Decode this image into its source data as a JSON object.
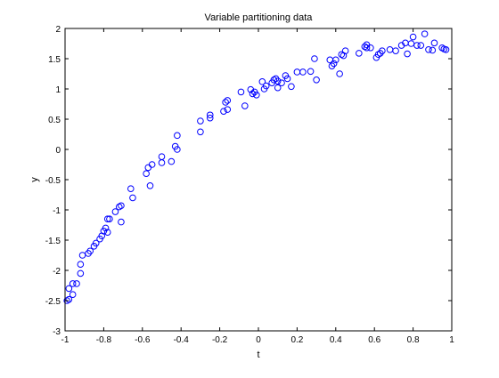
{
  "chart_data": {
    "type": "scatter",
    "title": "Variable partitioning data",
    "xlabel": "t",
    "ylabel": "y",
    "xlim": [
      -1,
      1
    ],
    "ylim": [
      -3,
      2
    ],
    "xticks": [
      -1,
      -0.8,
      -0.6,
      -0.4,
      -0.2,
      0,
      0.2,
      0.4,
      0.6,
      0.8,
      1
    ],
    "xtick_labels": [
      "-1",
      "-0.8",
      "-0.6",
      "-0.4",
      "-0.2",
      "0",
      "0.2",
      "0.4",
      "0.6",
      "0.8",
      "1"
    ],
    "yticks": [
      -3,
      -2.5,
      -2,
      -1.5,
      -1,
      -0.5,
      0,
      0.5,
      1,
      1.5,
      2
    ],
    "ytick_labels": [
      "-3",
      "-2.5",
      "-2",
      "-1.5",
      "-1",
      "-0.5",
      "0",
      "0.5",
      "1",
      "1.5",
      "2"
    ],
    "grid": false,
    "marker": "circle",
    "marker_color": "#0000ff",
    "series": [
      {
        "points": [
          [
            -0.99,
            -2.5
          ],
          [
            -0.98,
            -2.48
          ],
          [
            -0.98,
            -2.3
          ],
          [
            -0.96,
            -2.22
          ],
          [
            -0.96,
            -2.4
          ],
          [
            -0.94,
            -2.22
          ],
          [
            -0.92,
            -2.05
          ],
          [
            -0.92,
            -1.9
          ],
          [
            -0.91,
            -1.75
          ],
          [
            -0.88,
            -1.72
          ],
          [
            -0.87,
            -1.68
          ],
          [
            -0.85,
            -1.6
          ],
          [
            -0.84,
            -1.55
          ],
          [
            -0.82,
            -1.48
          ],
          [
            -0.81,
            -1.43
          ],
          [
            -0.8,
            -1.35
          ],
          [
            -0.79,
            -1.3
          ],
          [
            -0.78,
            -1.37
          ],
          [
            -0.78,
            -1.15
          ],
          [
            -0.77,
            -1.15
          ],
          [
            -0.74,
            -1.03
          ],
          [
            -0.72,
            -0.95
          ],
          [
            -0.71,
            -0.93
          ],
          [
            -0.71,
            -1.2
          ],
          [
            -0.66,
            -0.65
          ],
          [
            -0.65,
            -0.8
          ],
          [
            -0.58,
            -0.4
          ],
          [
            -0.57,
            -0.3
          ],
          [
            -0.56,
            -0.6
          ],
          [
            -0.55,
            -0.25
          ],
          [
            -0.5,
            -0.12
          ],
          [
            -0.5,
            -0.22
          ],
          [
            -0.45,
            -0.2
          ],
          [
            -0.43,
            0.05
          ],
          [
            -0.42,
            0.0
          ],
          [
            -0.42,
            0.23
          ],
          [
            -0.3,
            0.29
          ],
          [
            -0.3,
            0.47
          ],
          [
            -0.25,
            0.52
          ],
          [
            -0.25,
            0.57
          ],
          [
            -0.18,
            0.63
          ],
          [
            -0.17,
            0.78
          ],
          [
            -0.16,
            0.81
          ],
          [
            -0.16,
            0.66
          ],
          [
            -0.09,
            0.95
          ],
          [
            -0.07,
            0.72
          ],
          [
            -0.04,
            0.99
          ],
          [
            -0.03,
            0.92
          ],
          [
            -0.02,
            0.95
          ],
          [
            -0.01,
            0.9
          ],
          [
            0.02,
            1.12
          ],
          [
            0.03,
            1.0
          ],
          [
            0.04,
            1.05
          ],
          [
            0.07,
            1.1
          ],
          [
            0.08,
            1.15
          ],
          [
            0.09,
            1.17
          ],
          [
            0.1,
            1.13
          ],
          [
            0.1,
            1.02
          ],
          [
            0.12,
            1.1
          ],
          [
            0.14,
            1.22
          ],
          [
            0.15,
            1.17
          ],
          [
            0.17,
            1.04
          ],
          [
            0.2,
            1.28
          ],
          [
            0.23,
            1.28
          ],
          [
            0.27,
            1.29
          ],
          [
            0.29,
            1.5
          ],
          [
            0.3,
            1.15
          ],
          [
            0.37,
            1.48
          ],
          [
            0.38,
            1.38
          ],
          [
            0.39,
            1.42
          ],
          [
            0.4,
            1.48
          ],
          [
            0.42,
            1.25
          ],
          [
            0.43,
            1.57
          ],
          [
            0.44,
            1.55
          ],
          [
            0.45,
            1.63
          ],
          [
            0.52,
            1.59
          ],
          [
            0.55,
            1.7
          ],
          [
            0.56,
            1.73
          ],
          [
            0.56,
            1.68
          ],
          [
            0.58,
            1.68
          ],
          [
            0.61,
            1.52
          ],
          [
            0.62,
            1.57
          ],
          [
            0.63,
            1.59
          ],
          [
            0.64,
            1.63
          ],
          [
            0.68,
            1.65
          ],
          [
            0.71,
            1.63
          ],
          [
            0.74,
            1.72
          ],
          [
            0.76,
            1.76
          ],
          [
            0.77,
            1.58
          ],
          [
            0.79,
            1.75
          ],
          [
            0.8,
            1.86
          ],
          [
            0.82,
            1.72
          ],
          [
            0.84,
            1.72
          ],
          [
            0.86,
            1.91
          ],
          [
            0.88,
            1.65
          ],
          [
            0.9,
            1.64
          ],
          [
            0.91,
            1.76
          ],
          [
            0.95,
            1.68
          ],
          [
            0.96,
            1.66
          ],
          [
            0.97,
            1.65
          ]
        ]
      }
    ]
  }
}
